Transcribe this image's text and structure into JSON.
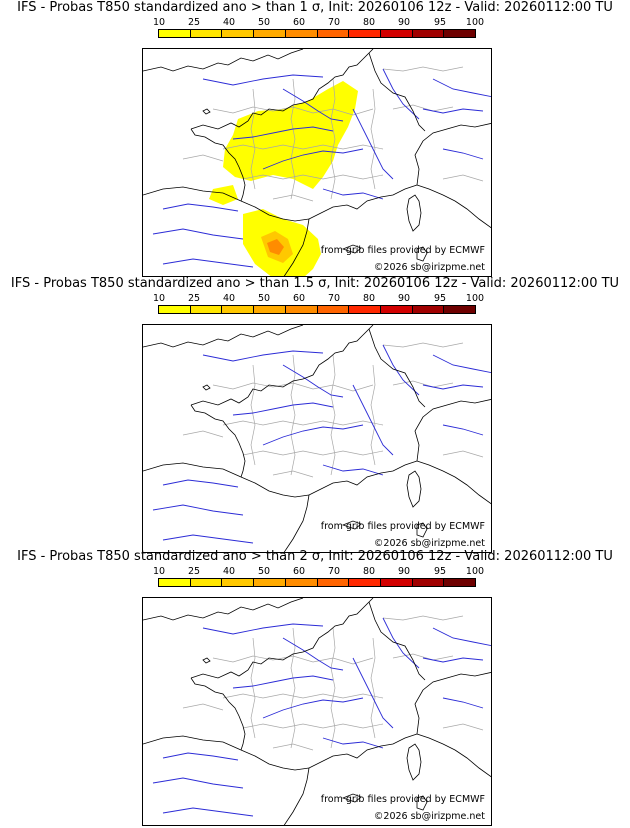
{
  "colorbar": {
    "ticks": [
      "10",
      "25",
      "40",
      "50",
      "60",
      "70",
      "80",
      "90",
      "95",
      "100"
    ],
    "colors": [
      "#ffff00",
      "#ffe600",
      "#ffc800",
      "#ffaa00",
      "#ff8c00",
      "#ff6400",
      "#ff2800",
      "#d20000",
      "#a00000",
      "#6e0000"
    ]
  },
  "panels": [
    {
      "title": "IFS - Probas T850  standardized ano > than 1 σ, Init: 20260106 12z - Valid: 20260112:00 TU",
      "source": "from grib files provided by ECMWF",
      "copyright": "©2026 sb@irizpme.net",
      "anomaly_level": "1 σ",
      "has_probability_area": true
    },
    {
      "title": "IFS - Probas T850  standardized ano > than 1.5 σ, Init: 20260106 12z - Valid: 20260112:00 TU",
      "source": "from grib files provided by ECMWF",
      "copyright": "©2026 sb@irizpme.net",
      "anomaly_level": "1.5 σ",
      "has_probability_area": false
    },
    {
      "title": "IFS - Probas T850  standardized ano > than 2 σ, Init: 20260106 12z - Valid: 20260112:00 TU",
      "source": "from grib files provided by ECMWF",
      "copyright": "©2026 sb@irizpme.net",
      "anomaly_level": "2 σ",
      "has_probability_area": false
    }
  ],
  "map_colors": {
    "coast": "#000000",
    "rivers": "#2b2bd6",
    "departments": "#a8a8a8",
    "probability_low": "#ffff00",
    "probability_mid": "#ffc800",
    "probability_high": "#ff8c00"
  }
}
